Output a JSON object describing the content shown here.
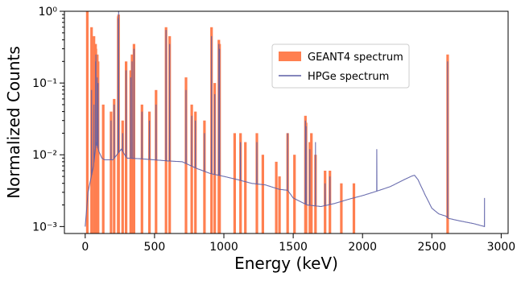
{
  "chart_data": {
    "type": "bar",
    "title": "",
    "xlabel": "Energy (keV)",
    "ylabel": "Normalized Counts",
    "xlim": [
      -150,
      3050
    ],
    "ylim": [
      0.0008,
      1.0
    ],
    "yscale": "log",
    "grid": false,
    "legend_position": "top-center",
    "x_ticks": [
      0,
      500,
      1000,
      1500,
      2000,
      2500,
      3000
    ],
    "x_tick_labels": [
      "0",
      "500",
      "1000",
      "1500",
      "2000",
      "2500",
      "3000"
    ],
    "y_ticks": [
      0.001,
      0.01,
      0.1,
      1
    ],
    "y_tick_labels": [
      "10⁻³",
      "10⁻²",
      "10⁻¹",
      "10⁰"
    ],
    "series": [
      {
        "name": "GEANT4 spectrum",
        "type": "bar",
        "color": "#FF7F50",
        "x": [
          15,
          46,
          63,
          75,
          77,
          87,
          93,
          130,
          186,
          209,
          238,
          241,
          270,
          295,
          328,
          338,
          352,
          409,
          463,
          511,
          583,
          609,
          727,
          768,
          795,
          860,
          911,
          934,
          964,
          969,
          1078,
          1120,
          1155,
          1238,
          1281,
          1378,
          1401,
          1460,
          1509,
          1588,
          1593,
          1620,
          1631,
          1661,
          1730,
          1765,
          1847,
          1938,
          2614
        ],
        "values": [
          1.0,
          0.6,
          0.45,
          0.35,
          0.3,
          0.25,
          0.2,
          0.05,
          0.04,
          0.06,
          0.85,
          0.9,
          0.03,
          0.2,
          0.15,
          0.25,
          0.35,
          0.05,
          0.04,
          0.08,
          0.6,
          0.45,
          0.12,
          0.05,
          0.04,
          0.03,
          0.6,
          0.1,
          0.4,
          0.35,
          0.02,
          0.02,
          0.015,
          0.02,
          0.01,
          0.008,
          0.005,
          0.02,
          0.01,
          0.035,
          0.028,
          0.015,
          0.02,
          0.01,
          0.006,
          0.006,
          0.004,
          0.004,
          0.25
        ]
      },
      {
        "name": "HPGe spectrum",
        "type": "line",
        "color": "#5B5EA6",
        "continuum": {
          "x": [
            0,
            20,
            60,
            80,
            100,
            120,
            140,
            200,
            260,
            300,
            400,
            500,
            600,
            700,
            800,
            900,
            1000,
            1100,
            1200,
            1300,
            1400,
            1460,
            1500,
            1600,
            1700,
            1800,
            1900,
            2000,
            2100,
            2200,
            2300,
            2350,
            2375,
            2400,
            2450,
            2500,
            2550,
            2600,
            2620,
            2700,
            2800,
            2880
          ],
          "values": [
            0.001,
            0.003,
            0.007,
            0.015,
            0.011,
            0.009,
            0.0085,
            0.0085,
            0.012,
            0.009,
            0.0088,
            0.0085,
            0.0082,
            0.008,
            0.0065,
            0.0055,
            0.005,
            0.0045,
            0.004,
            0.0038,
            0.0033,
            0.0032,
            0.0025,
            0.002,
            0.0019,
            0.0021,
            0.0024,
            0.0027,
            0.0031,
            0.0036,
            0.0045,
            0.005,
            0.0052,
            0.0045,
            0.0028,
            0.0018,
            0.0015,
            0.0014,
            0.0013,
            0.0012,
            0.0011,
            0.001
          ]
        },
        "peaks": {
          "x": [
            46,
            63,
            75,
            77,
            87,
            93,
            186,
            209,
            238,
            241,
            270,
            295,
            328,
            338,
            352,
            409,
            463,
            511,
            583,
            609,
            727,
            768,
            795,
            860,
            911,
            934,
            964,
            969,
            1120,
            1238,
            1460,
            1588,
            1593,
            1620,
            1661,
            1730,
            1765,
            2103,
            2614,
            2880
          ],
          "values": [
            0.08,
            0.05,
            0.2,
            0.25,
            0.12,
            0.1,
            0.03,
            0.05,
            0.8,
            1.0,
            0.02,
            0.15,
            0.12,
            0.2,
            0.3,
            0.04,
            0.03,
            0.05,
            0.55,
            0.35,
            0.08,
            0.035,
            0.03,
            0.02,
            0.45,
            0.07,
            0.35,
            0.3,
            0.015,
            0.015,
            0.02,
            0.03,
            0.025,
            0.012,
            0.015,
            0.004,
            0.005,
            0.012,
            0.2,
            0.0025
          ]
        }
      }
    ]
  }
}
